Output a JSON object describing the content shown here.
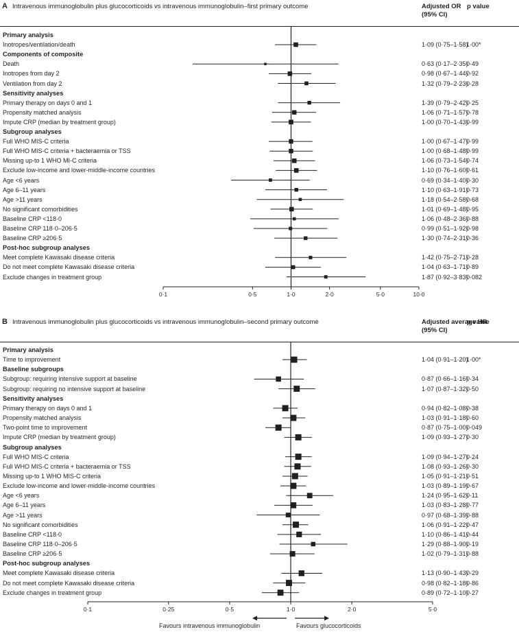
{
  "panels": [
    {
      "id": "A",
      "title": "Intravenous immunoglobulin plus glucocorticoids vs intravenous immunoglobulin–first primary outcome",
      "estimate_header": [
        "Adjusted OR",
        "(95% CI)"
      ],
      "p_header": "p value",
      "ticks": [
        {
          "value": 0.1,
          "label": "0·1"
        },
        {
          "value": 0.5,
          "label": "0·5"
        },
        {
          "value": 1.0,
          "label": "1·0"
        },
        {
          "value": 2.0,
          "label": "2·0"
        },
        {
          "value": 5.0,
          "label": "5·0"
        },
        {
          "value": 10.0,
          "label": "10·0"
        }
      ],
      "rows": [
        {
          "type": "section",
          "label": "Primary analysis"
        },
        {
          "type": "data",
          "label": "Inotropes/ventilation/death",
          "est": 1.09,
          "lo": 0.75,
          "hi": 1.58,
          "ci_text": "1·09 (0·75–1·58)",
          "p": "1·00*"
        },
        {
          "type": "section",
          "label": "Components of composite"
        },
        {
          "type": "data",
          "label": "Death",
          "est": 0.63,
          "lo": 0.17,
          "hi": 2.35,
          "ci_text": "0·63 (0·17–2·35)",
          "p": "0·49"
        },
        {
          "type": "data",
          "label": "Inotropes from day 2",
          "est": 0.98,
          "lo": 0.67,
          "hi": 1.44,
          "ci_text": "0·98 (0·67–1·44)",
          "p": "0·92"
        },
        {
          "type": "data",
          "label": "Ventilation from day 2",
          "est": 1.32,
          "lo": 0.79,
          "hi": 2.23,
          "ci_text": "1·32 (0·79–2·23)",
          "p": "0·28"
        },
        {
          "type": "section",
          "label": "Sensitivity analyses"
        },
        {
          "type": "data",
          "label": "Primary therapy on days 0 and 1",
          "est": 1.39,
          "lo": 0.79,
          "hi": 2.42,
          "ci_text": "1·39 (0·79–2·42)",
          "p": "0·25"
        },
        {
          "type": "data",
          "label": "Propensity matched analysis",
          "est": 1.06,
          "lo": 0.71,
          "hi": 1.57,
          "ci_text": "1·06 (0·71–1·57)",
          "p": "0·78"
        },
        {
          "type": "data",
          "label": "Impute CRP (median by treatment group)",
          "est": 1.0,
          "lo": 0.7,
          "hi": 1.43,
          "ci_text": "1·00 (0·70–1·43)",
          "p": "0·99"
        },
        {
          "type": "section",
          "label": "Subgroup analyses"
        },
        {
          "type": "data",
          "label": "Full WHO MIS-C criteria",
          "est": 1.0,
          "lo": 0.67,
          "hi": 1.47,
          "ci_text": "1·00 (0·67–1·47)",
          "p": "0·99"
        },
        {
          "type": "data",
          "label": "Full WHO MIS-C criteria + bacteraemia or TSS",
          "est": 1.0,
          "lo": 0.68,
          "hi": 1.48,
          "ci_text": "1·00 (0·68–1·48)",
          "p": "0·99"
        },
        {
          "type": "data",
          "label": "Missing up-to 1 WHO MI-C criteria",
          "est": 1.06,
          "lo": 0.73,
          "hi": 1.54,
          "ci_text": "1·06 (0·73–1·54)",
          "p": "0·74"
        },
        {
          "type": "data",
          "label": "Exclude low-income and lower-middle-income countries",
          "est": 1.1,
          "lo": 0.76,
          "hi": 1.6,
          "ci_text": "1·10 (0·76–1·60)",
          "p": "0·61"
        },
        {
          "type": "data",
          "label": "Age <6 years",
          "est": 0.69,
          "lo": 0.34,
          "hi": 1.4,
          "ci_text": "0·69 (0·34–1·40)",
          "p": "0·30"
        },
        {
          "type": "data",
          "label": "Age 6–11 years",
          "est": 1.1,
          "lo": 0.63,
          "hi": 1.91,
          "ci_text": "1·10 (0·63–1·91)",
          "p": "0·73"
        },
        {
          "type": "data",
          "label": "Age >11 years",
          "est": 1.18,
          "lo": 0.54,
          "hi": 2.58,
          "ci_text": "1·18 (0·54–2·58)",
          "p": "0·68"
        },
        {
          "type": "data",
          "label": "No significant comorbidities",
          "est": 1.01,
          "lo": 0.69,
          "hi": 1.48,
          "ci_text": "1·01 (0·69–1·48)",
          "p": "0·95"
        },
        {
          "type": "data",
          "label": "Baseline CRP <118·0",
          "est": 1.06,
          "lo": 0.48,
          "hi": 2.36,
          "ci_text": "1·06 (0·48–2·36)",
          "p": "0·88"
        },
        {
          "type": "data",
          "label": "Baseline CRP 118·0–206·5",
          "est": 0.99,
          "lo": 0.51,
          "hi": 1.92,
          "ci_text": "0·99 (0·51–1·92)",
          "p": "0·98"
        },
        {
          "type": "data",
          "label": "Baseline CRP ≥206·5",
          "est": 1.3,
          "lo": 0.74,
          "hi": 2.31,
          "ci_text": "1·30 (0·74–2·31)",
          "p": "0·36"
        },
        {
          "type": "section",
          "label": "Post-hoc subgroup analyses"
        },
        {
          "type": "data",
          "label": "Meet complete Kawasaki disease criteria",
          "est": 1.42,
          "lo": 0.75,
          "hi": 2.71,
          "ci_text": "1·42 (0·75–2·71)",
          "p": "0·28"
        },
        {
          "type": "data",
          "label": "Do not meet complete Kawasaki disease criteria",
          "est": 1.04,
          "lo": 0.63,
          "hi": 1.71,
          "ci_text": "1·04 (0·63–1·71)",
          "p": "0·89"
        },
        {
          "type": "data",
          "label": "Exclude changes in treatment group",
          "est": 1.87,
          "lo": 0.92,
          "hi": 3.83,
          "ci_text": "1·87 (0·92–3·83)",
          "p": "0·082"
        }
      ]
    },
    {
      "id": "B",
      "title": "Intravenous immunoglobulin plus glucocorticoids vs intravenous immunoglobulin–second primary outcome",
      "estimate_header": [
        "Adjusted average HR",
        "(95% CI)"
      ],
      "p_header": "p value",
      "ticks": [
        {
          "value": 0.1,
          "label": "0·1"
        },
        {
          "value": 0.25,
          "label": "0·25"
        },
        {
          "value": 0.5,
          "label": "0·5"
        },
        {
          "value": 1.0,
          "label": "1·0"
        },
        {
          "value": 2.0,
          "label": "2·0"
        },
        {
          "value": 5.0,
          "label": "5·0"
        }
      ],
      "rows": [
        {
          "type": "section",
          "label": "Primary analysis"
        },
        {
          "type": "data",
          "label": "Time to improvement",
          "est": 1.04,
          "lo": 0.91,
          "hi": 1.2,
          "ci_text": "1·04 (0·91–1·20)",
          "p": "1·00*"
        },
        {
          "type": "section",
          "label": "Baseline subgroups"
        },
        {
          "type": "data",
          "label": "Subgroup: requiring intensive support at baseline",
          "est": 0.87,
          "lo": 0.66,
          "hi": 1.16,
          "ci_text": "0·87 (0·66–1·16)",
          "p": "0·34"
        },
        {
          "type": "data",
          "label": "Subgroup: requiring no intensive support at baseline",
          "est": 1.07,
          "lo": 0.87,
          "hi": 1.32,
          "ci_text": "1·07 (0·87–1·32)",
          "p": "0·50"
        },
        {
          "type": "section",
          "label": "Sensitivity analyses"
        },
        {
          "type": "data",
          "label": "Primary therapy on days 0 and 1",
          "est": 0.94,
          "lo": 0.82,
          "hi": 1.08,
          "ci_text": "0·94 (0·82–1·08)",
          "p": "0·38"
        },
        {
          "type": "data",
          "label": "Propensity matched analysis",
          "est": 1.03,
          "lo": 0.91,
          "hi": 1.18,
          "ci_text": "1·03 (0·91–1·18)",
          "p": "0·60"
        },
        {
          "type": "data",
          "label": "Two-point time to improvement",
          "est": 0.87,
          "lo": 0.75,
          "hi": 1.0,
          "ci_text": "0·87 (0·75–1·00)",
          "p": "0·049"
        },
        {
          "type": "data",
          "label": "Impute CRP (median by treatment group)",
          "est": 1.09,
          "lo": 0.93,
          "hi": 1.27,
          "ci_text": "1·09 (0·93–1·27)",
          "p": "0·30"
        },
        {
          "type": "section",
          "label": "Subgroup analyses"
        },
        {
          "type": "data",
          "label": "Full WHO MIS-C criteria",
          "est": 1.09,
          "lo": 0.94,
          "hi": 1.27,
          "ci_text": "1·09 (0·94–1·27)",
          "p": "0·24"
        },
        {
          "type": "data",
          "label": "Full WHO MIS-C criteria + bacteraemia or TSS",
          "est": 1.08,
          "lo": 0.93,
          "hi": 1.26,
          "ci_text": "1·08 (0·93–1·26)",
          "p": "0·30"
        },
        {
          "type": "data",
          "label": "Missing up-to 1 WHO MIS-C criteria",
          "est": 1.05,
          "lo": 0.91,
          "hi": 1.21,
          "ci_text": "1·05 (0·91–1·21)",
          "p": "0·51"
        },
        {
          "type": "data",
          "label": "Exclude low-income and lower-middle-income countries",
          "est": 1.03,
          "lo": 0.89,
          "hi": 1.19,
          "ci_text": "1·03 (0·89–1·19)",
          "p": "0·67"
        },
        {
          "type": "data",
          "label": "Age <6 years",
          "est": 1.24,
          "lo": 0.95,
          "hi": 1.62,
          "ci_text": "1·24 (0·95–1·62)",
          "p": "0·11"
        },
        {
          "type": "data",
          "label": "Age 6–11 years",
          "est": 1.03,
          "lo": 0.83,
          "hi": 1.28,
          "ci_text": "1·03 (0·83–1·28)",
          "p": "0·77"
        },
        {
          "type": "data",
          "label": "Age >11 years",
          "est": 0.97,
          "lo": 0.68,
          "hi": 1.39,
          "ci_text": "0·97 (0·68–1·39)",
          "p": "0·88"
        },
        {
          "type": "data",
          "label": "No significant comorbidities",
          "est": 1.06,
          "lo": 0.91,
          "hi": 1.22,
          "ci_text": "1·06 (0·91–1·22)",
          "p": "0·47"
        },
        {
          "type": "data",
          "label": "Baseline CRP <118·0",
          "est": 1.1,
          "lo": 0.86,
          "hi": 1.41,
          "ci_text": "1·10 (0·86–1·41)",
          "p": "0·44"
        },
        {
          "type": "data",
          "label": "Baseline CRP 118·0–206·5",
          "est": 1.29,
          "lo": 0.88,
          "hi": 1.9,
          "ci_text": "1·29 (0·88–1·90)",
          "p": "0·19"
        },
        {
          "type": "data",
          "label": "Baseline CRP ≥206·5",
          "est": 1.02,
          "lo": 0.79,
          "hi": 1.31,
          "ci_text": "1·02 (0·79–1·31)",
          "p": "0·88"
        },
        {
          "type": "section",
          "label": "Post-hoc subgroup analyses"
        },
        {
          "type": "data",
          "label": "Meet complete Kawasaki disease criteria",
          "est": 1.13,
          "lo": 0.9,
          "hi": 1.43,
          "ci_text": "1·13 (0·90–1·43)",
          "p": "0·29"
        },
        {
          "type": "data",
          "label": "Do not meet complete Kawasaki disease criteria",
          "est": 0.98,
          "lo": 0.82,
          "hi": 1.18,
          "ci_text": "0·98 (0·82–1·18)",
          "p": "0·86"
        },
        {
          "type": "data",
          "label": "Exclude changes in treatment group",
          "est": 0.89,
          "lo": 0.72,
          "hi": 1.1,
          "ci_text": "0·89 (0·72–1·10)",
          "p": "0·27"
        }
      ],
      "favours_left": "Favours intravenous immunoglobulin",
      "favours_right": "Favours glucocorticoids"
    }
  ],
  "chart_data": [
    {
      "type": "scatter",
      "subtype": "forest",
      "title": "Intravenous immunoglobulin plus glucocorticoids vs intravenous immunoglobulin–first primary outcome",
      "xlabel": "Adjusted OR (95% CI)",
      "xscale": "log",
      "xlim": [
        0.1,
        10.0
      ],
      "reference_line": 1.0,
      "categories": [
        "Inotropes/ventilation/death",
        "Death",
        "Inotropes from day 2",
        "Ventilation from day 2",
        "Primary therapy on days 0 and 1",
        "Propensity matched analysis",
        "Impute CRP (median by treatment group)",
        "Full WHO MIS-C criteria",
        "Full WHO MIS-C criteria + bacteraemia or TSS",
        "Missing up-to 1 WHO MI-C criteria",
        "Exclude low-income and lower-middle-income countries",
        "Age <6 years",
        "Age 6–11 years",
        "Age >11 years",
        "No significant comorbidities",
        "Baseline CRP <118·0",
        "Baseline CRP 118·0–206·5",
        "Baseline CRP ≥206·5",
        "Meet complete Kawasaki disease criteria",
        "Do not meet complete Kawasaki disease criteria",
        "Exclude changes in treatment group"
      ],
      "values": [
        1.09,
        0.63,
        0.98,
        1.32,
        1.39,
        1.06,
        1.0,
        1.0,
        1.0,
        1.06,
        1.1,
        0.69,
        1.1,
        1.18,
        1.01,
        1.06,
        0.99,
        1.3,
        1.42,
        1.04,
        1.87
      ],
      "ci_low": [
        0.75,
        0.17,
        0.67,
        0.79,
        0.79,
        0.71,
        0.7,
        0.67,
        0.68,
        0.73,
        0.76,
        0.34,
        0.63,
        0.54,
        0.69,
        0.48,
        0.51,
        0.74,
        0.75,
        0.63,
        0.92
      ],
      "ci_high": [
        1.58,
        2.35,
        1.44,
        2.23,
        2.42,
        1.57,
        1.43,
        1.47,
        1.48,
        1.54,
        1.6,
        1.4,
        1.91,
        2.58,
        1.48,
        2.36,
        1.92,
        2.31,
        2.71,
        1.71,
        3.83
      ],
      "p_values": [
        "1·00*",
        "0·49",
        "0·92",
        "0·28",
        "0·25",
        "0·78",
        "0·99",
        "0·99",
        "0·99",
        "0·74",
        "0·61",
        "0·30",
        "0·73",
        "0·68",
        "0·95",
        "0·88",
        "0·98",
        "0·36",
        "0·28",
        "0·89",
        "0·082"
      ]
    },
    {
      "type": "scatter",
      "subtype": "forest",
      "title": "Intravenous immunoglobulin plus glucocorticoids vs intravenous immunoglobulin–second primary outcome",
      "xlabel": "Adjusted average HR (95% CI)",
      "xscale": "log",
      "xlim": [
        0.1,
        5.0
      ],
      "reference_line": 1.0,
      "categories": [
        "Time to improvement",
        "Subgroup: requiring intensive support at baseline",
        "Subgroup: requiring no intensive support at baseline",
        "Primary therapy on days 0 and 1",
        "Propensity matched analysis",
        "Two-point time to improvement",
        "Impute CRP (median by treatment group)",
        "Full WHO MIS-C criteria",
        "Full WHO MIS-C criteria + bacteraemia or TSS",
        "Missing up-to 1 WHO MIS-C criteria",
        "Exclude low-income and lower-middle-income countries",
        "Age <6 years",
        "Age 6–11 years",
        "Age >11 years",
        "No significant comorbidities",
        "Baseline CRP <118·0",
        "Baseline CRP 118·0–206·5",
        "Baseline CRP ≥206·5",
        "Meet complete Kawasaki disease criteria",
        "Do not meet complete Kawasaki disease criteria",
        "Exclude changes in treatment group"
      ],
      "values": [
        1.04,
        0.87,
        1.07,
        0.94,
        1.03,
        0.87,
        1.09,
        1.09,
        1.08,
        1.05,
        1.03,
        1.24,
        1.03,
        0.97,
        1.06,
        1.1,
        1.29,
        1.02,
        1.13,
        0.98,
        0.89
      ],
      "ci_low": [
        0.91,
        0.66,
        0.87,
        0.82,
        0.91,
        0.75,
        0.93,
        0.94,
        0.93,
        0.91,
        0.89,
        0.95,
        0.83,
        0.68,
        0.91,
        0.86,
        0.88,
        0.79,
        0.9,
        0.82,
        0.72
      ],
      "ci_high": [
        1.2,
        1.16,
        1.32,
        1.08,
        1.18,
        1.0,
        1.27,
        1.27,
        1.26,
        1.21,
        1.19,
        1.62,
        1.28,
        1.39,
        1.22,
        1.41,
        1.9,
        1.31,
        1.43,
        1.18,
        1.1
      ],
      "p_values": [
        "1·00*",
        "0·34",
        "0·50",
        "0·38",
        "0·60",
        "0·049",
        "0·30",
        "0·24",
        "0·30",
        "0·51",
        "0·67",
        "0·11",
        "0·77",
        "0·88",
        "0·47",
        "0·44",
        "0·19",
        "0·88",
        "0·29",
        "0·86",
        "0·27"
      ],
      "annotations": [
        "Favours intravenous immunoglobulin",
        "Favours glucocorticoids"
      ]
    }
  ]
}
